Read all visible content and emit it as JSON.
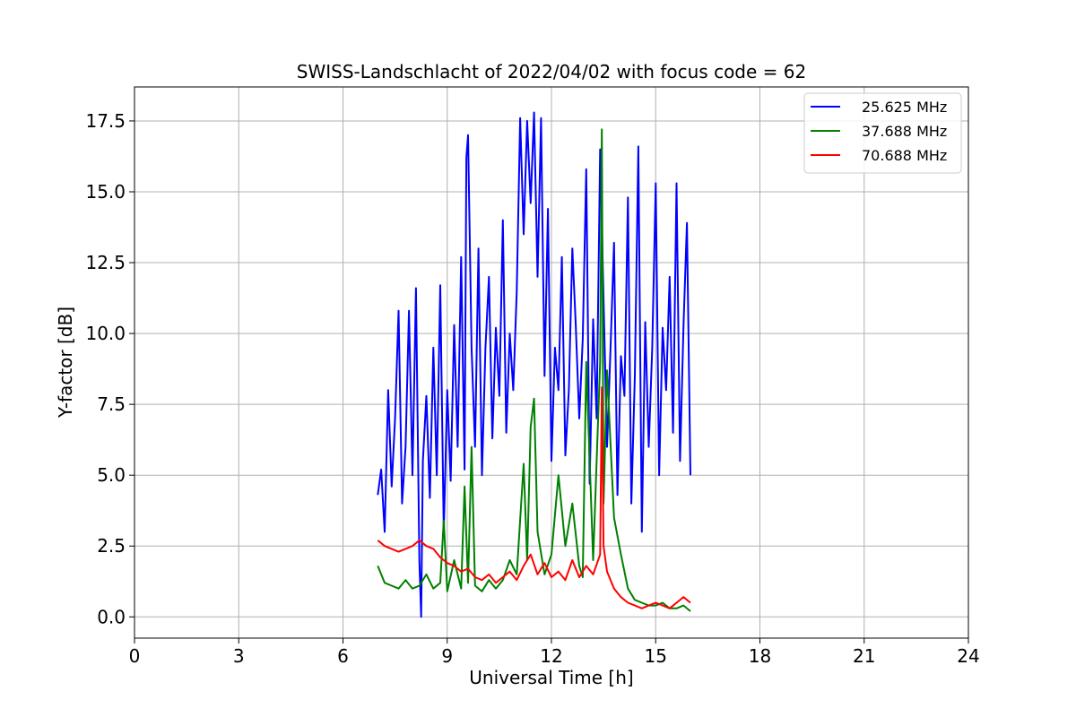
{
  "chart_data": {
    "type": "line",
    "title": "SWISS-Landschlacht of 2022/04/02 with focus code = 62",
    "xlabel": "Universal Time [h]",
    "ylabel": "Y-factor [dB]",
    "xlim": [
      0,
      24
    ],
    "ylim": [
      -0.75,
      18.7
    ],
    "xticks": [
      0,
      3,
      6,
      9,
      12,
      15,
      18,
      21,
      24
    ],
    "xtick_labels": [
      "0",
      "3",
      "6",
      "9",
      "12",
      "15",
      "18",
      "21",
      "24"
    ],
    "yticks": [
      0,
      2.5,
      5,
      7.5,
      10,
      12.5,
      15,
      17.5
    ],
    "ytick_labels": [
      "0.0",
      "2.5",
      "5.0",
      "7.5",
      "10.0",
      "12.5",
      "15.0",
      "17.5"
    ],
    "grid": true,
    "legend_position": "top-right",
    "series": [
      {
        "name": "25.625 MHz",
        "color": "#0000ff",
        "x": [
          7.0,
          7.1,
          7.2,
          7.3,
          7.4,
          7.5,
          7.6,
          7.7,
          7.8,
          7.9,
          8.0,
          8.1,
          8.2,
          8.25,
          8.3,
          8.4,
          8.5,
          8.6,
          8.7,
          8.8,
          8.9,
          9.0,
          9.1,
          9.2,
          9.3,
          9.4,
          9.5,
          9.55,
          9.6,
          9.7,
          9.8,
          9.9,
          10.0,
          10.1,
          10.2,
          10.3,
          10.4,
          10.5,
          10.6,
          10.7,
          10.8,
          10.9,
          11.0,
          11.1,
          11.2,
          11.3,
          11.4,
          11.5,
          11.6,
          11.7,
          11.8,
          11.9,
          12.0,
          12.1,
          12.2,
          12.3,
          12.4,
          12.5,
          12.6,
          12.7,
          12.8,
          12.9,
          13.0,
          13.1,
          13.2,
          13.3,
          13.4,
          13.5,
          13.6,
          13.7,
          13.8,
          13.9,
          14.0,
          14.1,
          14.2,
          14.3,
          14.4,
          14.5,
          14.6,
          14.7,
          14.8,
          14.9,
          15.0,
          15.1,
          15.2,
          15.3,
          15.4,
          15.5,
          15.6,
          15.7,
          15.8,
          15.9,
          16.0
        ],
        "y": [
          4.3,
          5.2,
          3.0,
          8.0,
          4.6,
          7.0,
          10.8,
          4.0,
          6.0,
          10.8,
          5.0,
          11.6,
          2.0,
          0.0,
          5.5,
          7.8,
          4.2,
          9.5,
          5.0,
          11.7,
          3.0,
          8.0,
          4.8,
          10.3,
          6.0,
          12.7,
          5.2,
          16.2,
          17.0,
          9.5,
          6.0,
          13.0,
          5.0,
          9.5,
          12.0,
          6.3,
          10.2,
          7.8,
          14.0,
          6.5,
          10.0,
          8.0,
          11.5,
          17.6,
          13.5,
          17.5,
          14.6,
          17.8,
          12.0,
          17.6,
          8.5,
          14.4,
          5.5,
          9.5,
          8.0,
          12.7,
          5.7,
          8.0,
          13.0,
          10.3,
          7.0,
          9.8,
          15.8,
          4.7,
          10.5,
          7.0,
          16.5,
          11.2,
          6.0,
          9.5,
          13.2,
          4.3,
          9.2,
          7.8,
          14.8,
          4.0,
          8.5,
          16.6,
          3.0,
          10.4,
          6.0,
          9.5,
          15.3,
          5.0,
          10.2,
          8.0,
          12.0,
          6.5,
          15.3,
          5.5,
          10.3,
          13.9,
          5.0
        ]
      },
      {
        "name": "37.688 MHz",
        "color": "#008000",
        "x": [
          7.0,
          7.2,
          7.4,
          7.6,
          7.8,
          8.0,
          8.2,
          8.4,
          8.6,
          8.8,
          8.9,
          9.0,
          9.2,
          9.4,
          9.5,
          9.6,
          9.7,
          9.8,
          10.0,
          10.2,
          10.4,
          10.6,
          10.8,
          11.0,
          11.2,
          11.3,
          11.4,
          11.5,
          11.6,
          11.8,
          12.0,
          12.2,
          12.4,
          12.6,
          12.8,
          12.9,
          13.0,
          13.2,
          13.4,
          13.45,
          13.5,
          13.6,
          13.8,
          14.0,
          14.2,
          14.4,
          14.6,
          14.8,
          15.0,
          15.2,
          15.4,
          15.6,
          15.8,
          16.0
        ],
        "y": [
          1.8,
          1.2,
          1.1,
          1.0,
          1.3,
          1.0,
          1.1,
          1.5,
          1.0,
          1.2,
          3.4,
          0.9,
          2.0,
          1.0,
          4.6,
          1.2,
          6.0,
          1.1,
          0.9,
          1.3,
          1.0,
          1.3,
          2.0,
          1.5,
          5.4,
          2.0,
          6.7,
          7.7,
          3.0,
          1.5,
          2.2,
          5.0,
          2.5,
          4.0,
          1.8,
          1.4,
          9.0,
          2.0,
          9.0,
          17.2,
          4.0,
          8.7,
          3.5,
          2.2,
          1.0,
          0.6,
          0.5,
          0.4,
          0.4,
          0.5,
          0.3,
          0.3,
          0.4,
          0.2
        ]
      },
      {
        "name": "70.688 MHz",
        "color": "#ff0000",
        "x": [
          7.0,
          7.2,
          7.4,
          7.6,
          7.8,
          8.0,
          8.2,
          8.4,
          8.6,
          8.8,
          9.0,
          9.2,
          9.4,
          9.6,
          9.8,
          10.0,
          10.2,
          10.4,
          10.6,
          10.8,
          11.0,
          11.2,
          11.4,
          11.6,
          11.8,
          12.0,
          12.2,
          12.4,
          12.6,
          12.8,
          13.0,
          13.2,
          13.4,
          13.45,
          13.5,
          13.6,
          13.8,
          14.0,
          14.2,
          14.4,
          14.6,
          14.8,
          15.0,
          15.2,
          15.4,
          15.6,
          15.8,
          16.0
        ],
        "y": [
          2.7,
          2.5,
          2.4,
          2.3,
          2.4,
          2.5,
          2.7,
          2.5,
          2.4,
          2.1,
          1.9,
          1.8,
          1.6,
          1.7,
          1.4,
          1.3,
          1.5,
          1.2,
          1.4,
          1.6,
          1.3,
          1.8,
          2.2,
          1.5,
          1.9,
          1.4,
          1.6,
          1.3,
          2.0,
          1.4,
          1.8,
          1.5,
          2.2,
          8.1,
          2.5,
          1.6,
          1.0,
          0.7,
          0.5,
          0.4,
          0.3,
          0.4,
          0.5,
          0.4,
          0.3,
          0.5,
          0.7,
          0.5
        ]
      }
    ]
  }
}
